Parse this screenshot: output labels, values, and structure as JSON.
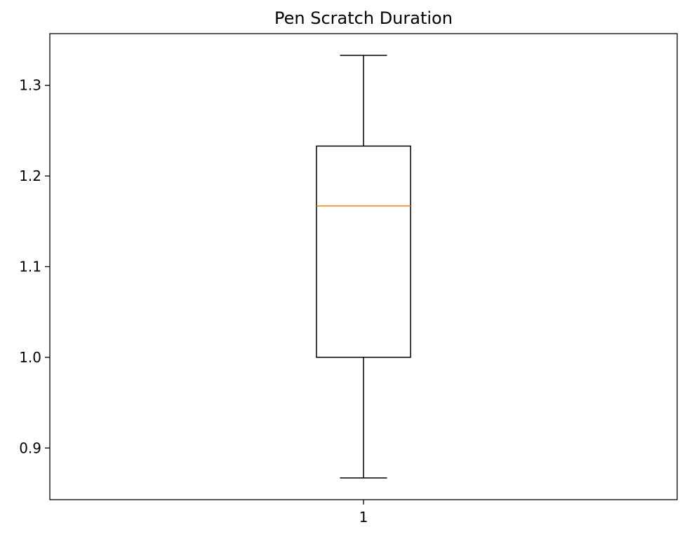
{
  "chart_data": {
    "type": "box",
    "title": "Pen Scratch Duration",
    "xlabel": "",
    "ylabel": "",
    "categories": [
      "1"
    ],
    "ylim": [
      0.843,
      1.357
    ],
    "yticks": [
      0.9,
      1.0,
      1.1,
      1.2,
      1.3
    ],
    "ytick_labels": [
      "0.9",
      "1.0",
      "1.1",
      "1.2",
      "1.3"
    ],
    "grid": false,
    "boxes": [
      {
        "category": "1",
        "whisker_low": 0.867,
        "q1": 1.0,
        "median": 1.167,
        "q3": 1.233,
        "whisker_high": 1.333
      }
    ],
    "colors": {
      "box": "#000000",
      "median": "#ff7f0e",
      "axes": "#000000"
    }
  }
}
